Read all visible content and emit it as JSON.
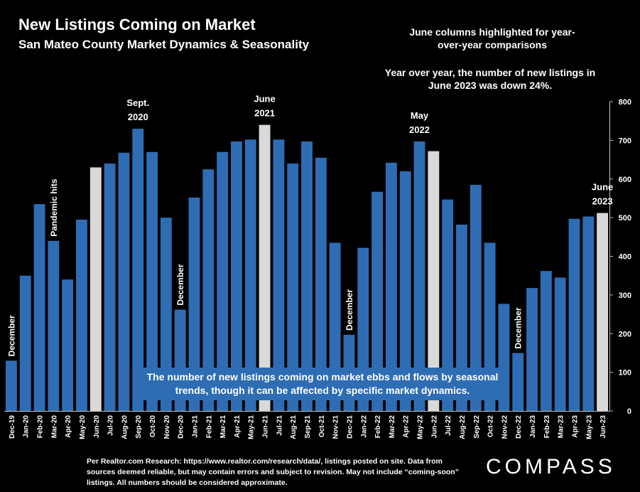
{
  "header": {
    "title": "New Listings Coming on Market",
    "subtitle": "San Mateo County Market Dynamics & Seasonality",
    "note_june": "June columns highlighted for year-over-year comparisons",
    "note_yoy": "Year over year, the number of new listings in June 2023 was down 24%."
  },
  "callout": {
    "text": "The number of new listings coming on market ebbs and flows by seasonal trends, though it can be affected by specific market dynamics."
  },
  "footer": {
    "source": "Per Realtor.com Research:  https://www.realtor.com/research/data/, listings posted on site. Data from sources deemed reliable, but may contain errors and subject to revision. May not include “coming-soon” listings. All numbers should be considered approximate.",
    "logo": "COMPASS"
  },
  "colors": {
    "bar": "#2e6db4",
    "highlight": "#d9d9d9",
    "background": "#000000",
    "text": "#ffffff"
  },
  "chart_data": {
    "type": "bar",
    "categories": [
      "Dec-19",
      "Jan-20",
      "Feb-20",
      "Mar-20",
      "Apr-20",
      "May-20",
      "Jun-20",
      "Jul-20",
      "Aug-20",
      "Sep-20",
      "Oct-20",
      "Nov-20",
      "Dec-20",
      "Jan-21",
      "Feb-21",
      "Mar-21",
      "Apr-21",
      "May-21",
      "Jun-21",
      "Jul-21",
      "Aug-21",
      "Sep-21",
      "Oct-21",
      "Nov-21",
      "Dec-21",
      "Jan-22",
      "Feb-22",
      "Mar-22",
      "Apr-22",
      "May-22",
      "Jun-22",
      "Jul-22",
      "Aug-22",
      "Sep-22",
      "Oct-22",
      "Nov-22",
      "Dec-22",
      "Jan-23",
      "Feb-23",
      "Mar-23",
      "Apr-23",
      "May-23",
      "Jun-23"
    ],
    "values": [
      130,
      350,
      535,
      440,
      340,
      495,
      630,
      640,
      668,
      730,
      670,
      500,
      262,
      552,
      625,
      670,
      697,
      702,
      740,
      702,
      640,
      697,
      655,
      435,
      197,
      422,
      567,
      642,
      620,
      697,
      672,
      547,
      482,
      585,
      435,
      277,
      150,
      318,
      362,
      345,
      497,
      503,
      512
    ],
    "highlighted": [
      "Jun-20",
      "Jun-21",
      "Jun-22",
      "Jun-23"
    ],
    "ylim": [
      0,
      800
    ],
    "yticks": [
      0,
      100,
      200,
      300,
      400,
      500,
      600,
      700,
      800
    ],
    "y_axis_side": "right",
    "grid": false,
    "annotations": [
      {
        "category": "Dec-19",
        "text": "December",
        "orientation": "vertical"
      },
      {
        "category": "Mar-20",
        "text": "Pandemic hits",
        "orientation": "vertical"
      },
      {
        "category": "Sep-20",
        "text": "Sept. 2020",
        "orientation": "horizontal"
      },
      {
        "category": "Dec-20",
        "text": "December",
        "orientation": "vertical"
      },
      {
        "category": "Jun-21",
        "text": "June 2021",
        "orientation": "horizontal"
      },
      {
        "category": "Dec-21",
        "text": "December",
        "orientation": "vertical"
      },
      {
        "category": "May-22",
        "text": "May 2022",
        "orientation": "horizontal"
      },
      {
        "category": "Dec-22",
        "text": "December",
        "orientation": "vertical"
      },
      {
        "category": "Jun-23",
        "text": "June 2023",
        "orientation": "horizontal"
      }
    ]
  }
}
